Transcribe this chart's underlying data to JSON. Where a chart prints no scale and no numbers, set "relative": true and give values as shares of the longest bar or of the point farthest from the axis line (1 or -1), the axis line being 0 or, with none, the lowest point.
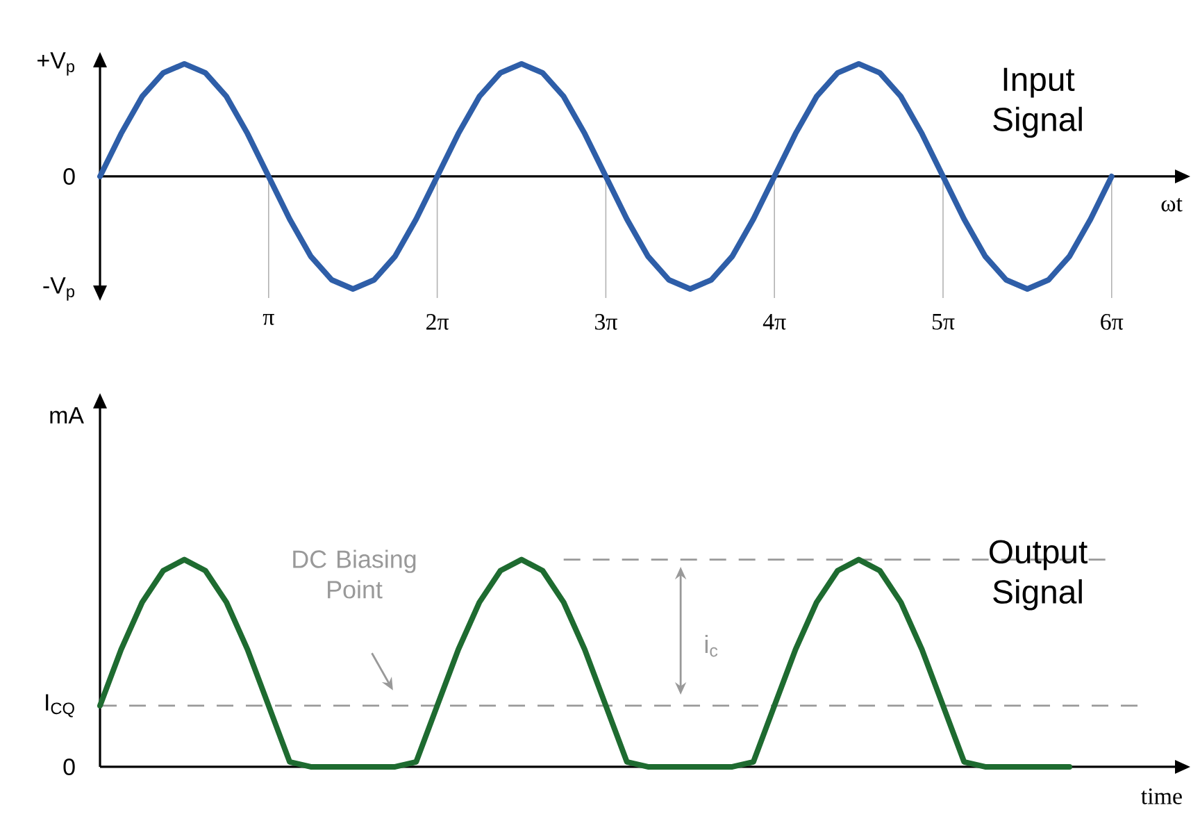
{
  "chart_data": [
    {
      "type": "line",
      "title": "Input Signal",
      "xlabel": "ωt",
      "relative": true,
      "categories": [
        null,
        null,
        null,
        null,
        null,
        null,
        null,
        null,
        "π",
        null,
        null,
        null,
        null,
        null,
        null,
        null,
        "2π",
        null,
        null,
        null,
        null,
        null,
        null,
        null,
        "3π",
        null,
        null,
        null,
        null,
        null,
        null,
        null,
        "4π",
        null,
        null,
        null,
        null,
        null,
        null,
        null,
        "5π",
        null,
        null,
        null,
        null,
        null,
        null,
        null,
        "6π"
      ],
      "annotations": [
        "+V$_{p}$",
        "0",
        "-V$_{p}$"
      ],
      "grid": "x",
      "marker": "none",
      "series": [
        {
          "color": "#2e5ea8",
          "values": [
            0,
            0.38,
            0.71,
            0.92,
            1,
            0.92,
            0.71,
            0.38,
            0,
            -0.38,
            -0.71,
            -0.92,
            -1,
            -0.92,
            -0.71,
            -0.38,
            0,
            0.38,
            0.71,
            0.92,
            1,
            0.92,
            0.71,
            0.38,
            0,
            -0.38,
            -0.71,
            -0.92,
            -1,
            -0.92,
            -0.71,
            -0.38,
            0,
            0.38,
            0.71,
            0.92,
            1,
            0.92,
            0.71,
            0.38,
            0,
            -0.38,
            -0.71,
            -0.92,
            -1,
            -0.92,
            -0.71,
            -0.38,
            0
          ]
        }
      ]
    },
    {
      "type": "line",
      "title": "Output Signal",
      "xlabel": "time",
      "ylabel": "mA",
      "relative": true,
      "categories": [
        null,
        null,
        null,
        null,
        null,
        null,
        null,
        null,
        null,
        null,
        null,
        null,
        null,
        null,
        null,
        null,
        null,
        null,
        null,
        null,
        null,
        null,
        null,
        null,
        null,
        null,
        null,
        null,
        null,
        null,
        null,
        null,
        null,
        null,
        null,
        null,
        null,
        null,
        null,
        null,
        null,
        null,
        null,
        null,
        null,
        null,
        null
      ],
      "marker": "none",
      "ref_lines": [
        {
          "axis": "y",
          "value": 0.295,
          "color": "#999999",
          "line_style": "dashed"
        },
        {
          "axis": "y",
          "value": 1,
          "color": "#999999",
          "line_style": "dashed"
        }
      ],
      "annotations": [
        "I$_{CQ}$",
        "0",
        "DC Biasing Point",
        "i$_{c}$"
      ],
      "series": [
        {
          "color": "#1e6b30",
          "values": [
            0.295,
            0.566,
            0.794,
            0.947,
            1,
            0.947,
            0.794,
            0.566,
            0.295,
            0.024,
            0,
            0,
            0,
            0,
            0,
            0.024,
            0.295,
            0.566,
            0.794,
            0.947,
            1,
            0.947,
            0.794,
            0.566,
            0.295,
            0.024,
            0,
            0,
            0,
            0,
            0,
            0.024,
            0.295,
            0.566,
            0.794,
            0.947,
            1,
            0.947,
            0.794,
            0.566,
            0.295,
            0.024,
            0,
            0,
            0,
            0,
            0
          ]
        }
      ]
    }
  ]
}
